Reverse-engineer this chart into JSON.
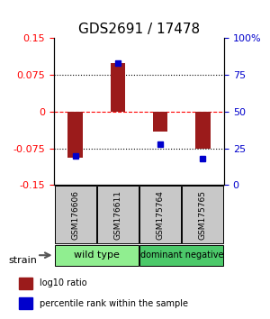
{
  "title": "GDS2691 / 17478",
  "samples": [
    "GSM176606",
    "GSM176611",
    "GSM175764",
    "GSM175765"
  ],
  "log10_ratio": [
    -0.095,
    0.1,
    -0.04,
    -0.075
  ],
  "percentile_rank": [
    0.2,
    0.83,
    0.28,
    0.18
  ],
  "ylim_left": [
    -0.15,
    0.15
  ],
  "ylim_right": [
    0.0,
    1.0
  ],
  "yticks_left": [
    -0.15,
    -0.075,
    0,
    0.075,
    0.15
  ],
  "ytick_labels_left": [
    "-0.15",
    "-0.075",
    "0",
    "0.075",
    "0.15"
  ],
  "yticks_right": [
    0.0,
    0.25,
    0.5,
    0.75,
    1.0
  ],
  "ytick_labels_right": [
    "0",
    "25",
    "50",
    "75",
    "100%"
  ],
  "hlines_dotted": [
    0.075,
    -0.075
  ],
  "hline_dashed_red": 0,
  "bar_color": "#9B1B1B",
  "dot_color": "#0000CC",
  "groups": [
    {
      "label": "wild type",
      "samples_idx": [
        0,
        1
      ],
      "color": "#90EE90"
    },
    {
      "label": "dominant negative",
      "samples_idx": [
        2,
        3
      ],
      "color": "#4CC96A"
    }
  ],
  "strain_label": "strain",
  "legend_items": [
    {
      "color": "#9B1B1B",
      "label": "log10 ratio"
    },
    {
      "color": "#0000CC",
      "label": "percentile rank within the sample"
    }
  ],
  "title_fontsize": 11,
  "tick_fontsize": 8,
  "bar_width": 0.35,
  "sample_box_color": "#C8C8C8"
}
